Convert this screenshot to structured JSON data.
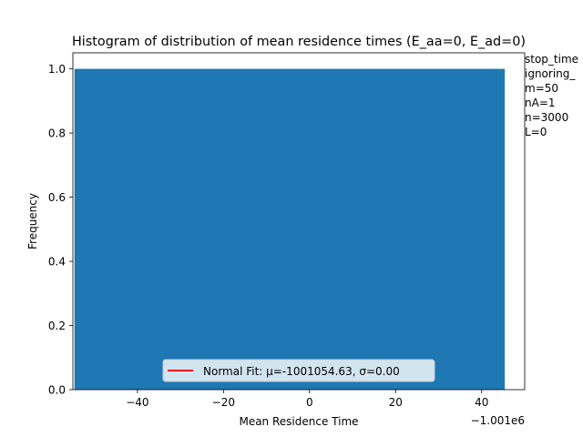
{
  "chart_data": {
    "type": "bar",
    "title": "Histogram of distribution of mean residence times (E_aa=0, E_ad=0)",
    "xlabel": "Mean Residence Time",
    "ylabel": "Frequency",
    "x_offset_label": "−1.001e6",
    "xlim": [
      -55,
      50
    ],
    "ylim": [
      0,
      1.05
    ],
    "xticks": [
      -40,
      -20,
      0,
      20,
      40
    ],
    "xtick_labels": [
      "−40",
      "−20",
      "0",
      "20",
      "40"
    ],
    "yticks": [
      0.0,
      0.2,
      0.4,
      0.6,
      0.8,
      1.0
    ],
    "ytick_labels": [
      "0.0",
      "0.2",
      "0.4",
      "0.6",
      "0.8",
      "1.0"
    ],
    "bins": [
      {
        "x_start": -54.63,
        "x_end": 45.37,
        "value": 1.0
      }
    ],
    "bar_color": "#1f77b4",
    "grid": false,
    "legend": {
      "placement": "lower center",
      "entries": [
        {
          "label": "Normal Fit: μ=-1001054.63, σ=0.00",
          "color": "#ff0000"
        }
      ]
    },
    "fit_line": {
      "mu": -1001054.63,
      "sigma": 0.0
    },
    "annotations": [
      "stop_time",
      "ignoring_",
      "m=50",
      "nA=1",
      "n=3000",
      "L=0"
    ]
  }
}
